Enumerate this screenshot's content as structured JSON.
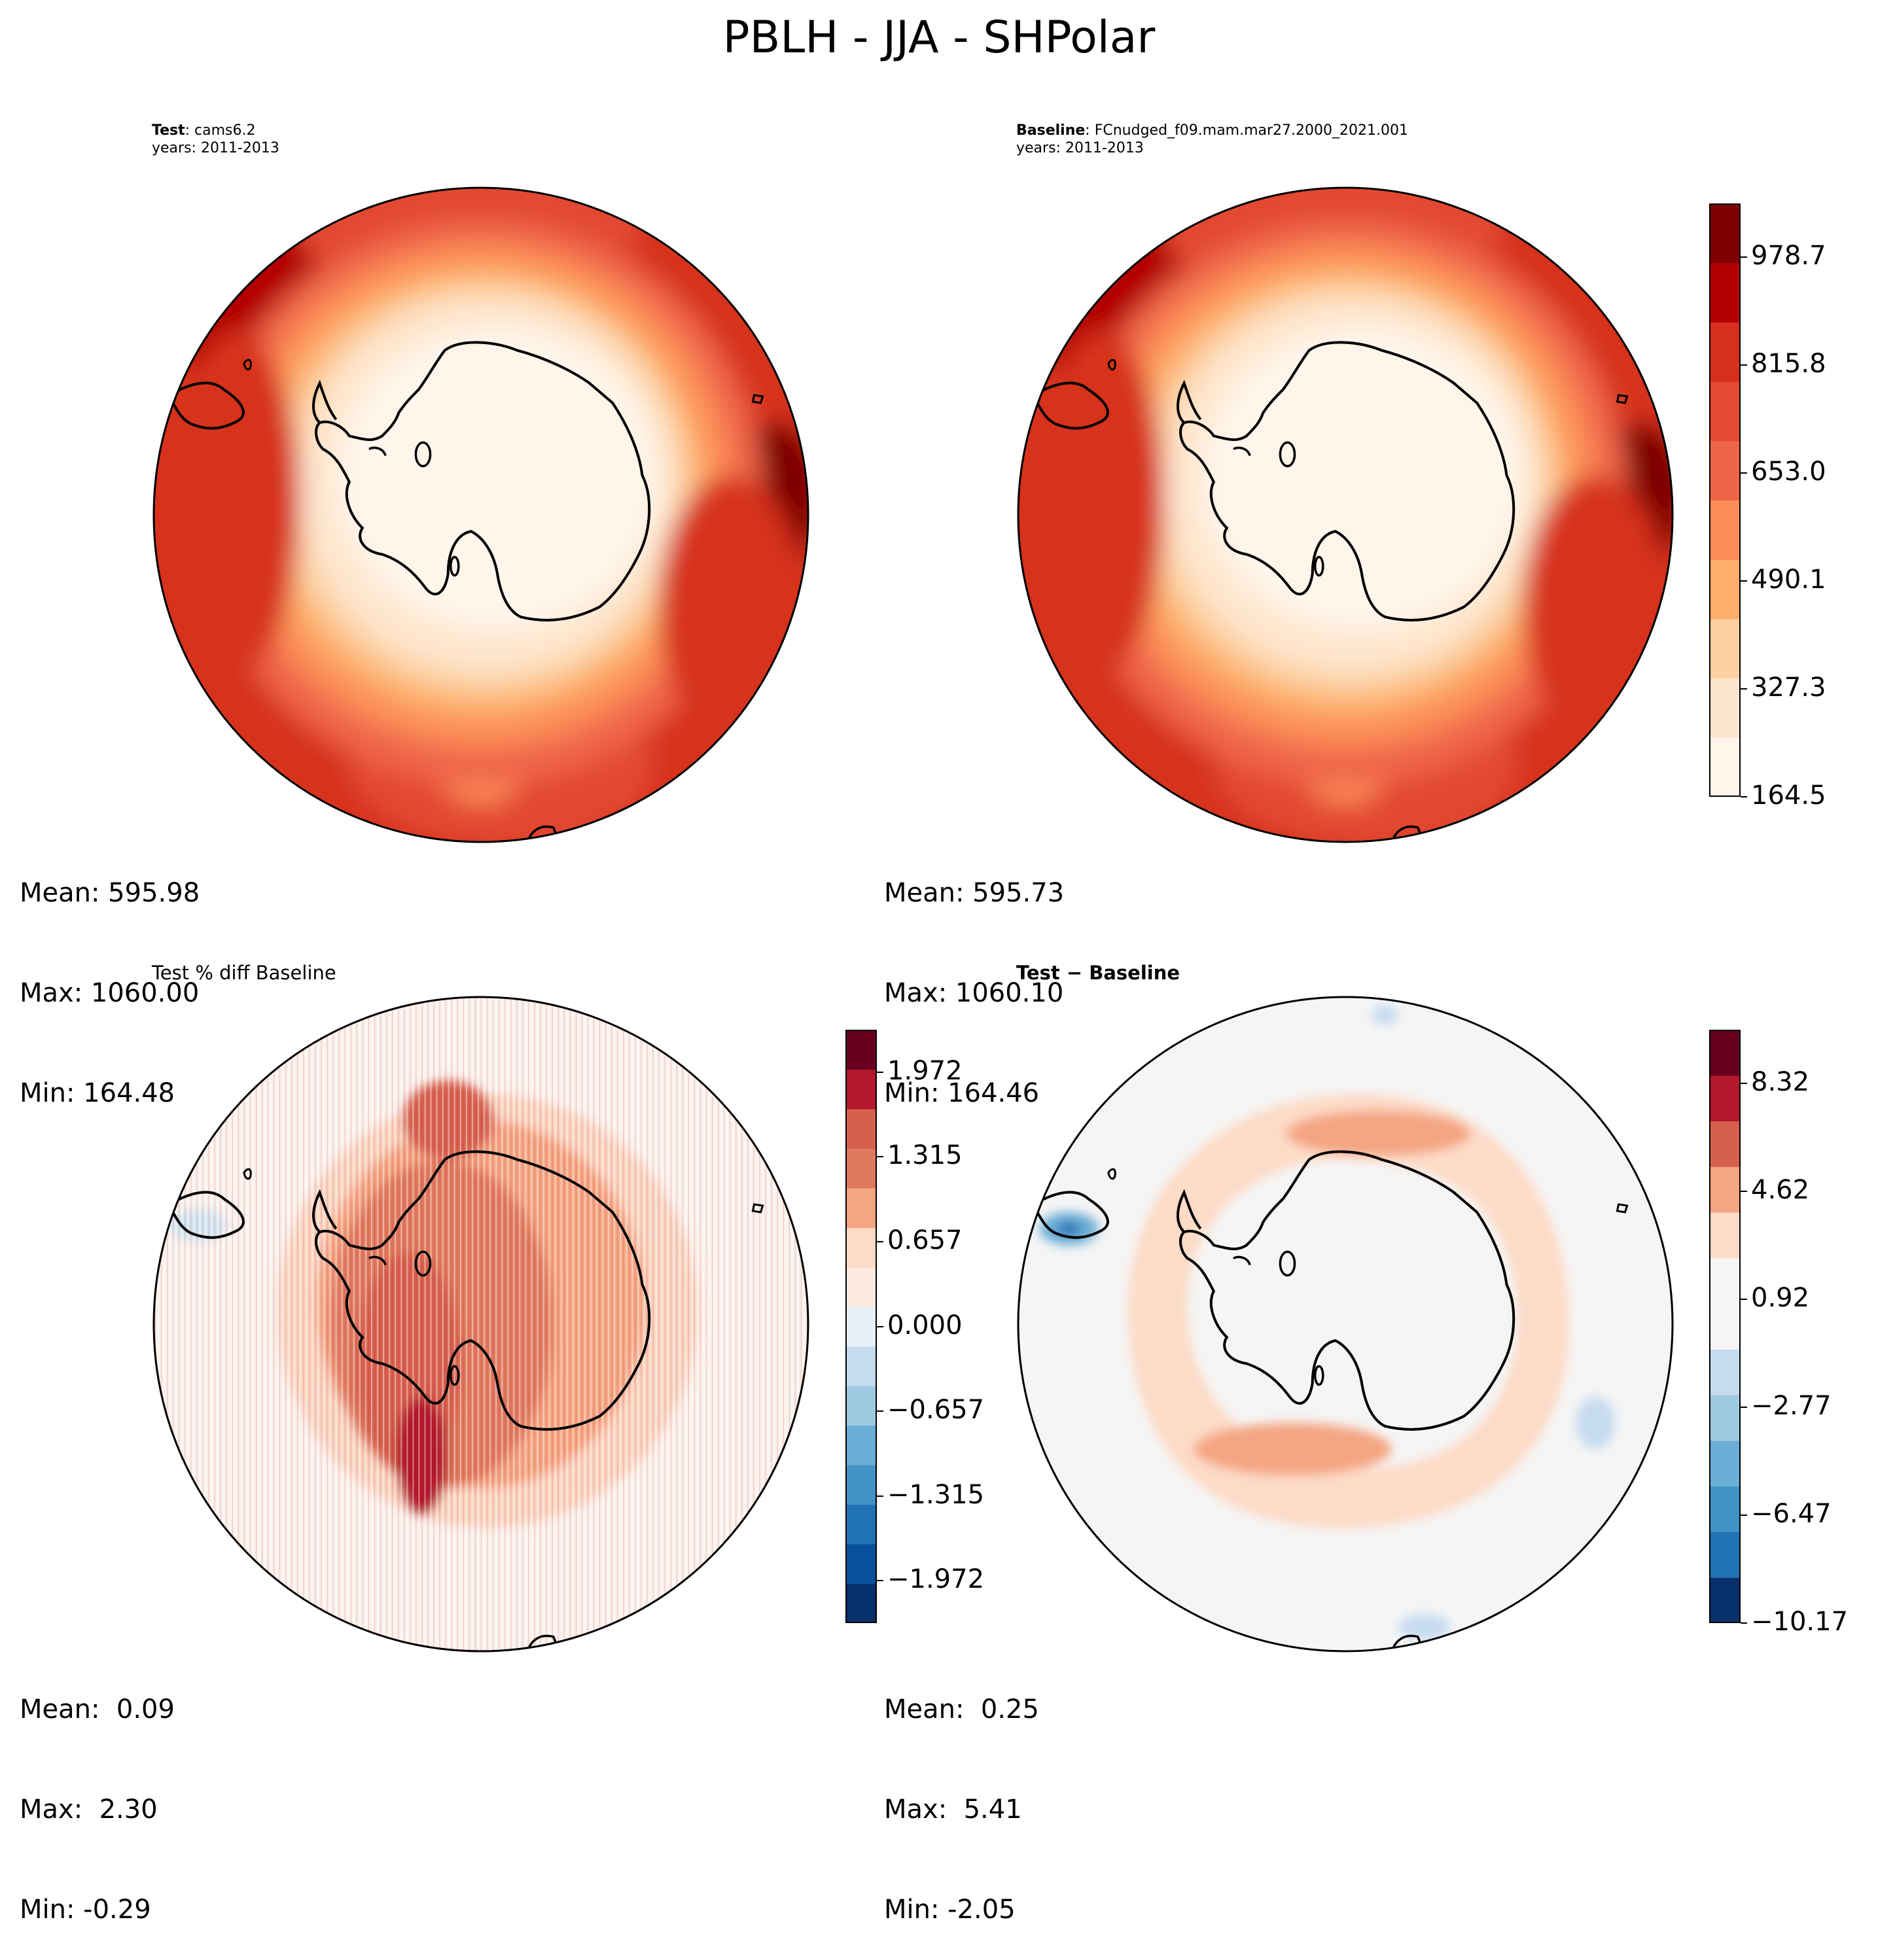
{
  "figure": {
    "title": "PBLH - JJA - SHPolar"
  },
  "panels": {
    "test": {
      "name_label": "Test",
      "name_value": ": cams6.2",
      "years": "years: 2011-2013",
      "stats": {
        "mean": "Mean: 595.98",
        "max": "Max: 1060.00",
        "min": "Min: 164.48"
      }
    },
    "baseline": {
      "name_label": "Baseline",
      "name_value": ": FCnudged_f09.mam.mar27.2000_2021.001",
      "years": "years: 2011-2013",
      "stats": {
        "mean": "Mean: 595.73",
        "max": "Max: 1060.10",
        "min": "Min: 164.46"
      }
    },
    "pctdiff": {
      "title": "Test % diff Baseline",
      "stats": {
        "mean": "Mean:  0.09",
        "max": "Max:  2.30",
        "min": "Min: -0.29"
      }
    },
    "diff": {
      "title": "Test − Baseline",
      "stats": {
        "mean": "Mean:  0.25",
        "max": "Max:  5.41",
        "min": "Min: -2.05"
      }
    }
  },
  "colorbars": {
    "field": {
      "ticks": [
        "164.5",
        "327.3",
        "490.1",
        "653.0",
        "815.8",
        "978.7"
      ],
      "tick_values": [
        164.5,
        327.3,
        490.1,
        653.0,
        815.8,
        978.7
      ],
      "range": [
        164.5,
        1060.0
      ],
      "colors": [
        "#fff5eb",
        "#fee6ce",
        "#fdd0a2",
        "#fdae6b",
        "#fc8d59",
        "#ef6548",
        "#e34a33",
        "#d7301f",
        "#b30000",
        "#7f0000"
      ]
    },
    "pctdiff": {
      "ticks": [
        "1.972",
        "1.315",
        "0.657",
        "0.000",
        "−0.657",
        "−1.315",
        "−1.972"
      ],
      "tick_values": [
        1.972,
        1.315,
        0.657,
        0.0,
        -0.657,
        -1.315,
        -1.972
      ],
      "range": [
        -2.3,
        2.3
      ],
      "colors": [
        "#08306b",
        "#08519c",
        "#2171b5",
        "#4292c6",
        "#6baed6",
        "#9ecae1",
        "#c6dbef",
        "#e8f1f8",
        "#fbe9e2",
        "#fddbc7",
        "#f4a582",
        "#e07a5f",
        "#d6604d",
        "#b2182b",
        "#67001f"
      ]
    },
    "diff": {
      "ticks": [
        "8.32",
        "4.62",
        "0.92",
        "−2.77",
        "−6.47",
        "−10.17"
      ],
      "tick_values": [
        8.32,
        4.62,
        0.92,
        -2.77,
        -6.47,
        -10.17
      ],
      "range": [
        -10.17,
        10.17
      ],
      "colors": [
        "#08306b",
        "#2171b5",
        "#4292c6",
        "#6baed6",
        "#9ecae1",
        "#c6dbef",
        "#f5f5f5",
        "#f5f5f5",
        "#fddbc7",
        "#f4a582",
        "#d6604d",
        "#b2182b",
        "#67001f"
      ]
    }
  }
}
